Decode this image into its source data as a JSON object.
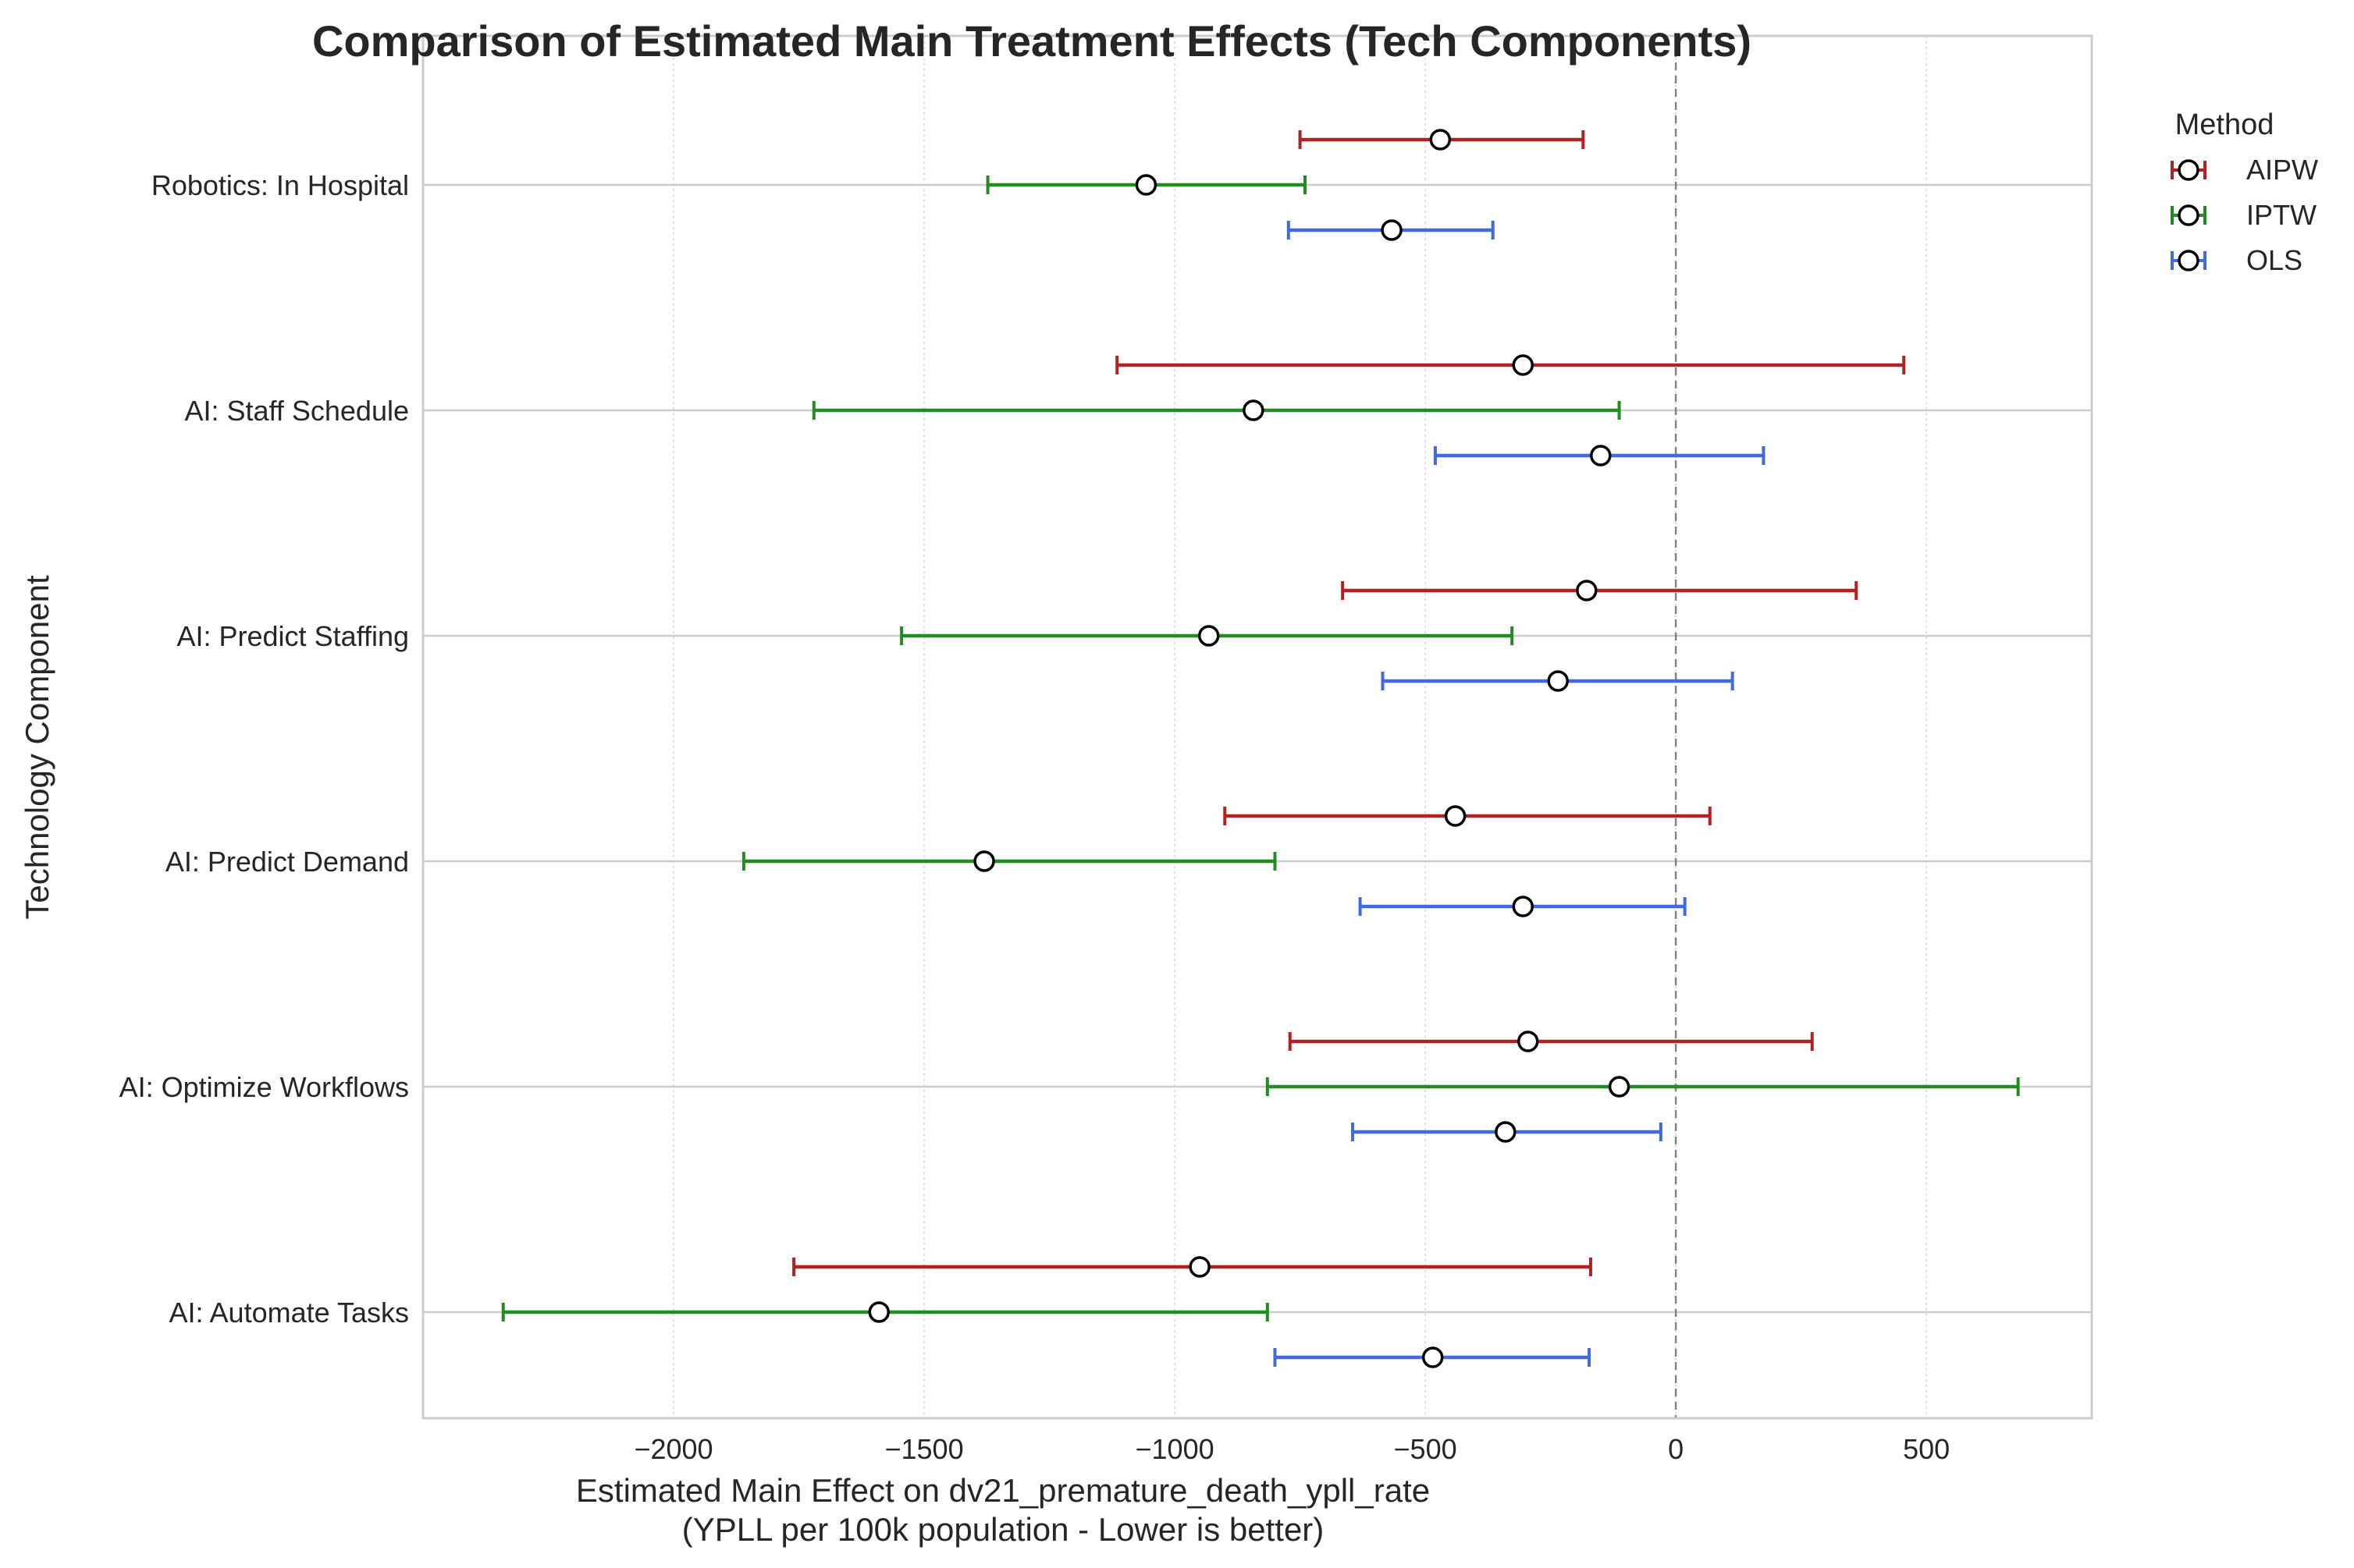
{
  "chart_data": {
    "type": "errorbar",
    "title": "Comparison of Estimated Main Treatment Effects (Tech Components)",
    "xlabel_line1": "Estimated Main Effect on dv21_premature_death_ypll_rate",
    "xlabel_line2": "(YPLL per 100k population - Lower is better)",
    "ylabel": "Technology Component",
    "xlim": [
      -2500,
      830
    ],
    "xticks": [
      -2000,
      -1500,
      -1000,
      -500,
      0,
      500
    ],
    "xtick_labels": [
      "−2000",
      "−1500",
      "−1000",
      "−500",
      "0",
      "500"
    ],
    "reference_line_x": 0,
    "grid": true,
    "legend": {
      "title": "Method",
      "placement": "outside-top-right"
    },
    "categories": [
      "Robotics: In Hospital",
      "AI: Staff Schedule",
      "AI: Predict Staffing",
      "AI: Predict Demand",
      "AI: Optimize Workflows",
      "AI: Automate Tasks"
    ],
    "series": [
      {
        "name": "AIPW",
        "color": "#b22222",
        "estimates": [
          -470,
          -305,
          -178,
          -440,
          -295,
          -950
        ],
        "ci_low": [
          -750,
          -1115,
          -665,
          -900,
          -770,
          -1760
        ],
        "ci_high": [
          -185,
          455,
          360,
          68,
          272,
          -170
        ]
      },
      {
        "name": "IPTW",
        "color": "#228b22",
        "estimates": [
          -1057,
          -843,
          -932,
          -1380,
          -113,
          -1590
        ],
        "ci_low": [
          -1373,
          -1720,
          -1545,
          -1860,
          -815,
          -2340
        ],
        "ci_high": [
          -740,
          -113,
          -327,
          -800,
          683,
          -815
        ]
      },
      {
        "name": "OLS",
        "color": "#4169e1",
        "estimates": [
          -567,
          -150,
          -235,
          -305,
          -340,
          -485
        ],
        "ci_low": [
          -773,
          -480,
          -585,
          -630,
          -645,
          -800
        ],
        "ci_high": [
          -365,
          175,
          113,
          18,
          -30,
          -173
        ]
      }
    ]
  }
}
